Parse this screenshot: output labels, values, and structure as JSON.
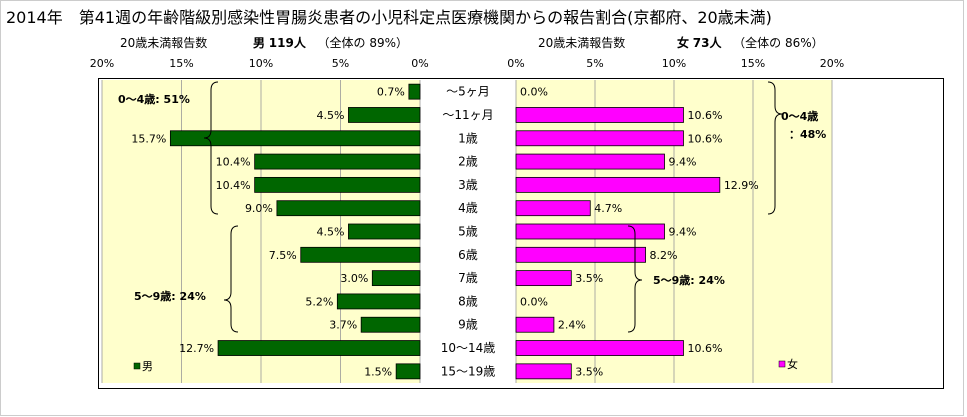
{
  "title": "2014年　第41週の年齢階級別感染性胃腸炎患者の小児科定点医療機関からの報告割合(京都府、20歳未満)",
  "left_header": {
    "text": "20歳未満報告数",
    "sex": "男",
    "count": "119人",
    "share_label": "（全体の",
    "share": "89%）"
  },
  "right_header": {
    "text": "20歳未満報告数",
    "sex": "女",
    "count": "73人",
    "share_label": "（全体の",
    "share": "86%）"
  },
  "left_groups": [
    "0～4歳: 51%",
    "5～9歳: 24%"
  ],
  "right_groups": [
    "0～4歳",
    "：48%",
    "5～9歳: 24%"
  ],
  "chart_data": [
    {
      "type": "bar",
      "orientation": "horizontal",
      "direction": "reversed",
      "categories": [
        "～5ヶ月",
        "～11ヶ月",
        "1歳",
        "2歳",
        "3歳",
        "4歳",
        "5歳",
        "6歳",
        "7歳",
        "8歳",
        "9歳",
        "10～14歳",
        "15～19歳"
      ],
      "series": [
        {
          "name": "男",
          "color": "#006600",
          "values": [
            0.7,
            4.5,
            15.7,
            10.4,
            10.4,
            9.0,
            4.5,
            7.5,
            3.0,
            5.2,
            3.7,
            12.7,
            1.5
          ],
          "labels": [
            "0.7%",
            "4.5%",
            "15.7%",
            "10.4%",
            "10.4%",
            "9.0%",
            "4.5%",
            "7.5%",
            "3.0%",
            "5.2%",
            "3.7%",
            "12.7%",
            "1.5%"
          ]
        }
      ],
      "xlim": [
        0,
        20
      ],
      "xticks": [
        "20%",
        "15%",
        "10%",
        "5%",
        "0%"
      ],
      "grid": true,
      "legend": "bottom-left",
      "background": "#FFFFCC"
    },
    {
      "type": "bar",
      "orientation": "horizontal",
      "categories": [
        "～5ヶ月",
        "～11ヶ月",
        "1歳",
        "2歳",
        "3歳",
        "4歳",
        "5歳",
        "6歳",
        "7歳",
        "8歳",
        "9歳",
        "10～14歳",
        "15～19歳"
      ],
      "series": [
        {
          "name": "女",
          "color": "#FF00FF",
          "values": [
            0.0,
            10.6,
            10.6,
            9.4,
            12.9,
            4.7,
            9.4,
            8.2,
            3.5,
            0.0,
            2.4,
            10.6,
            3.5
          ],
          "labels": [
            "0.0%",
            "10.6%",
            "10.6%",
            "9.4%",
            "12.9%",
            "4.7%",
            "9.4%",
            "8.2%",
            "3.5%",
            "0.0%",
            "2.4%",
            "10.6%",
            "3.5%"
          ]
        }
      ],
      "xlim": [
        0,
        20
      ],
      "xticks": [
        "0%",
        "5%",
        "10%",
        "15%",
        "20%"
      ],
      "grid": true,
      "legend": "bottom-right",
      "background": "#FFFFCC"
    }
  ]
}
